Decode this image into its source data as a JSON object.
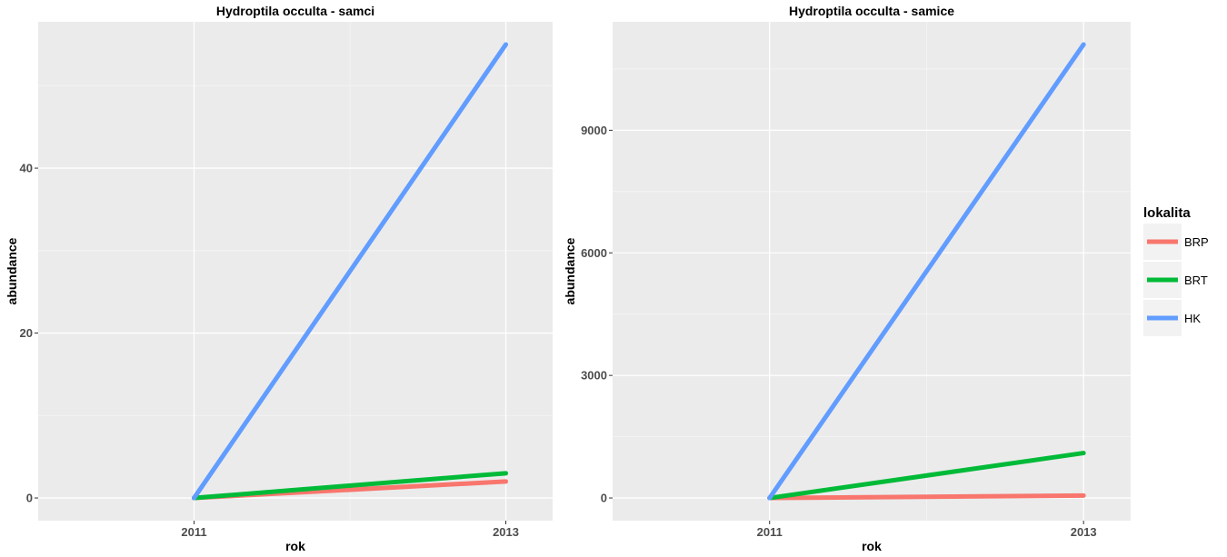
{
  "chart_data": [
    {
      "type": "line",
      "title": "Hydroptila occulta - samci",
      "xlabel": "rok",
      "ylabel": "abundance",
      "x": [
        2011,
        2013
      ],
      "xticks": [
        2011,
        2013
      ],
      "xlim": [
        2010.0,
        2013.3
      ],
      "ylim": [
        -2.75,
        57.75
      ],
      "yticks": [
        0,
        20,
        40
      ],
      "grid": true,
      "series": [
        {
          "name": "BRP",
          "values": [
            0,
            2
          ],
          "color": "#F8766D"
        },
        {
          "name": "BRT",
          "values": [
            0,
            3
          ],
          "color": "#00BA38"
        },
        {
          "name": "HK",
          "values": [
            0,
            55
          ],
          "color": "#619CFF"
        }
      ]
    },
    {
      "type": "line",
      "title": "Hydroptila occulta - samice",
      "xlabel": "rok",
      "ylabel": "abundance",
      "x": [
        2011,
        2013
      ],
      "xticks": [
        2011,
        2013
      ],
      "xlim": [
        2010.0,
        2013.3
      ],
      "ylim": [
        -555,
        11655
      ],
      "yticks": [
        0,
        3000,
        6000,
        9000
      ],
      "grid": true,
      "series": [
        {
          "name": "BRP",
          "values": [
            0,
            60
          ],
          "color": "#F8766D"
        },
        {
          "name": "BRT",
          "values": [
            0,
            1100
          ],
          "color": "#00BA38"
        },
        {
          "name": "HK",
          "values": [
            0,
            11100
          ],
          "color": "#619CFF"
        }
      ]
    }
  ],
  "legend": {
    "title": "lokalita",
    "position": "right",
    "items": [
      {
        "label": "BRP",
        "color": "#F8766D"
      },
      {
        "label": "BRT",
        "color": "#00BA38"
      },
      {
        "label": "HK",
        "color": "#619CFF"
      }
    ]
  }
}
